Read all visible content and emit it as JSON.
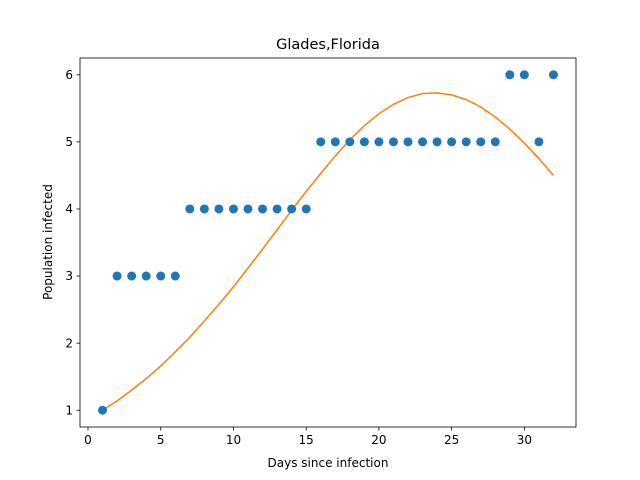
{
  "chart_data": {
    "type": "scatter",
    "title": "Glades,Florida",
    "xlabel": "Days since infection",
    "ylabel": "Population infected",
    "xlim": [
      -0.55,
      33.55
    ],
    "ylim": [
      0.75,
      6.25
    ],
    "xticks": [
      0,
      5,
      10,
      15,
      20,
      25,
      30
    ],
    "yticks": [
      1,
      2,
      3,
      4,
      5,
      6
    ],
    "grid": false,
    "series": [
      {
        "kind": "scatter",
        "color": "#1f77b4",
        "x": [
          1,
          2,
          3,
          4,
          5,
          6,
          7,
          8,
          9,
          10,
          11,
          12,
          13,
          14,
          15,
          16,
          17,
          18,
          19,
          20,
          21,
          22,
          23,
          24,
          25,
          26,
          27,
          28,
          29,
          30,
          31,
          32
        ],
        "y": [
          1,
          3,
          3,
          3,
          3,
          3,
          4,
          4,
          4,
          4,
          4,
          4,
          4,
          4,
          4,
          5,
          5,
          5,
          5,
          5,
          5,
          5,
          5,
          5,
          5,
          5,
          5,
          5,
          6,
          6,
          5,
          6
        ]
      },
      {
        "kind": "line",
        "color": "#ff7f0e",
        "x": [
          1,
          2,
          3,
          4,
          5,
          6,
          7,
          8,
          9,
          10,
          11,
          12,
          13,
          14,
          15,
          16,
          17,
          18,
          19,
          20,
          21,
          22,
          23,
          24,
          25,
          26,
          27,
          28,
          29,
          30,
          31,
          32
        ],
        "y": [
          1.0,
          1.14,
          1.3,
          1.47,
          1.66,
          1.87,
          2.09,
          2.33,
          2.58,
          2.84,
          3.12,
          3.4,
          3.69,
          3.98,
          4.26,
          4.53,
          4.79,
          5.03,
          5.24,
          5.42,
          5.56,
          5.66,
          5.72,
          5.73,
          5.7,
          5.63,
          5.52,
          5.37,
          5.19,
          4.98,
          4.75,
          4.5
        ]
      }
    ]
  }
}
